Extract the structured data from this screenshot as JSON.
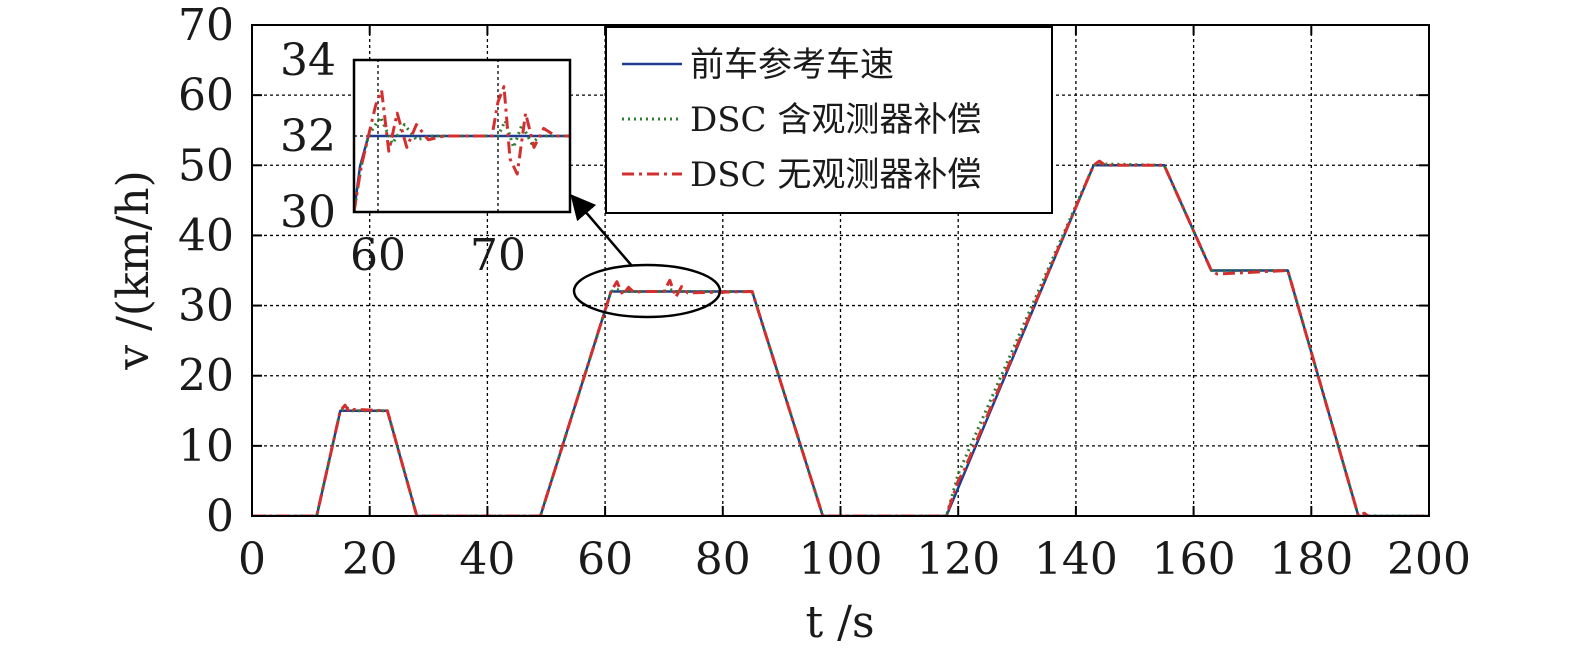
{
  "chart_data": {
    "type": "line",
    "xlabel": "t /s",
    "ylabel": "v /(km/h)",
    "xlim": [
      0,
      200
    ],
    "ylim": [
      0,
      70
    ],
    "xticks": [
      "0",
      "20",
      "40",
      "60",
      "80",
      "100",
      "120",
      "140",
      "160",
      "180",
      "200"
    ],
    "yticks": [
      "0",
      "10",
      "20",
      "30",
      "40",
      "50",
      "60",
      "70"
    ],
    "grid": true,
    "legend_position": "top-right",
    "series": [
      {
        "name": "前车参考车速",
        "color": "#1f3c8f",
        "style": "solid",
        "x": [
          0,
          11,
          15,
          23,
          28,
          49,
          61,
          85,
          97,
          118,
          143,
          155,
          163,
          176,
          188,
          200
        ],
        "y": [
          0,
          0,
          15,
          15,
          0,
          0,
          32,
          32,
          0,
          0,
          50,
          50,
          35,
          35,
          0,
          0
        ]
      },
      {
        "name": "DSC 含观测器补偿",
        "color": "#2e7d32",
        "style": "dotted",
        "x": [
          0,
          11,
          15,
          16,
          17,
          23,
          28,
          49,
          61,
          62,
          63,
          70,
          71,
          72,
          85,
          97,
          118,
          120,
          143,
          144,
          155,
          163,
          176,
          188,
          200
        ],
        "y": [
          0,
          0,
          15,
          15.5,
          15,
          15,
          0,
          0,
          32,
          32.3,
          32,
          32,
          32.3,
          32,
          32,
          0,
          0,
          6,
          50,
          50.2,
          50,
          35,
          35,
          0,
          0
        ]
      },
      {
        "name": "DSC 无观测器补偿",
        "color": "#d32f2f",
        "style": "dashdot",
        "x": [
          0,
          11,
          15,
          15.8,
          16.6,
          17.4,
          23,
          28,
          49,
          61,
          62,
          63,
          64,
          65,
          66,
          70,
          71,
          72,
          73,
          74,
          85,
          97,
          118,
          120,
          121,
          143,
          144,
          145,
          155,
          163,
          164,
          176,
          188,
          189,
          190,
          200
        ],
        "y": [
          0,
          0,
          15,
          15.8,
          14.8,
          15.2,
          15,
          0,
          0,
          32,
          33.4,
          31.5,
          32.6,
          31.8,
          32,
          32,
          33.6,
          31.2,
          32.7,
          31.8,
          32,
          0,
          0,
          5,
          6.5,
          50,
          50.6,
          50,
          50,
          35,
          34.5,
          35,
          0,
          0.4,
          -0.2,
          0
        ]
      }
    ],
    "inset": {
      "xlim": [
        58,
        76
      ],
      "ylim": [
        30,
        34
      ],
      "xticks": [
        "60",
        "70"
      ],
      "yticks": [
        "30",
        "32",
        "34"
      ],
      "series": [
        {
          "name": "前车参考车速",
          "x": [
            58,
            58.5,
            59.2,
            76
          ],
          "y": [
            30,
            31.2,
            32,
            32
          ]
        },
        {
          "name": "DSC 含观测器补偿",
          "x": [
            58,
            58.6,
            59.2,
            60.2,
            61.2,
            62.2,
            63.2,
            64.5,
            70,
            70.6,
            71.3,
            72.0,
            72.8,
            73.5,
            76
          ],
          "y": [
            30,
            31.2,
            32,
            32.5,
            31.8,
            32.3,
            31.9,
            32,
            32,
            32.4,
            31.7,
            32.3,
            31.8,
            32,
            32
          ]
        },
        {
          "name": "DSC 无观测器补偿",
          "x": [
            58,
            58.6,
            59.2,
            59.8,
            60.3,
            60.9,
            61.6,
            62.4,
            63.2,
            64.2,
            65.5,
            69.5,
            70.0,
            70.5,
            71.0,
            71.6,
            72.3,
            73.0,
            73.8,
            74.8,
            76
          ],
          "y": [
            30,
            31.2,
            32,
            32.8,
            33.2,
            31.6,
            32.6,
            31.7,
            32.3,
            31.9,
            32,
            32,
            32.9,
            33.3,
            31.4,
            31.0,
            32.6,
            31.7,
            32.2,
            32.0,
            32
          ]
        }
      ]
    }
  }
}
